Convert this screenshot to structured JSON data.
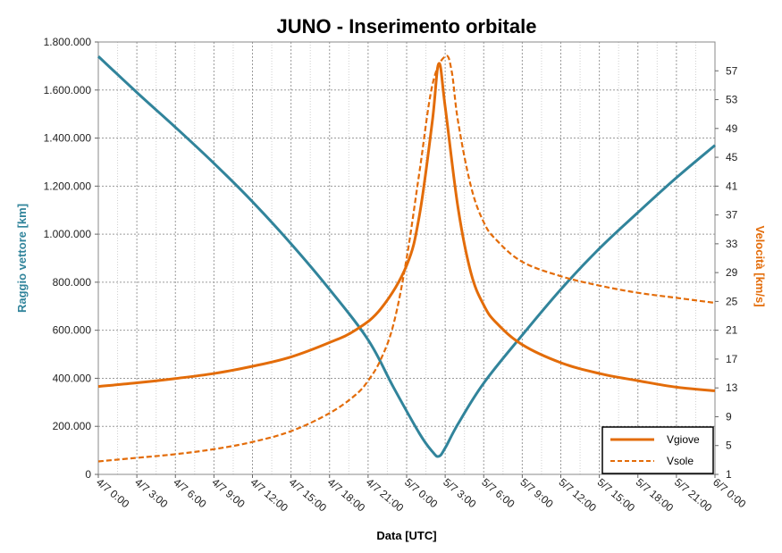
{
  "chart_data": {
    "type": "line",
    "title": "JUNO - Inserimento orbitale",
    "xlabel": "Data [UTC]",
    "ylabel_left": "Raggio vettore [km]",
    "ylabel_right": "Velocità [km/s]",
    "x_ticks": [
      "4/7 0:00",
      "4/7 3:00",
      "4/7 6:00",
      "4/7 9:00",
      "4/7 12:00",
      "4/7 15:00",
      "4/7 18:00",
      "4/7 21:00",
      "5/7 0:00",
      "5/7 3:00",
      "5/7 6:00",
      "5/7 9:00",
      "5/7 12:00",
      "5/7 15:00",
      "5/7 18:00",
      "5/7 21:00",
      "6/7 0:00"
    ],
    "x_range_hours": [
      0,
      48
    ],
    "y_left_ticks": [
      "0",
      "200.000",
      "400.000",
      "600.000",
      "800.000",
      "1.000.000",
      "1.200.000",
      "1.400.000",
      "1.600.000",
      "1.800.000"
    ],
    "y_left_range": [
      0,
      1800000
    ],
    "y_right_ticks": [
      "1",
      "5",
      "9",
      "13",
      "17",
      "21",
      "25",
      "29",
      "33",
      "37",
      "41",
      "45",
      "49",
      "53",
      "57"
    ],
    "y_right_range": [
      1,
      61
    ],
    "grid": true,
    "legend_position": "bottom-right",
    "colors": {
      "radius": "#31849B",
      "speed": "#E36C09"
    },
    "series": [
      {
        "name": "",
        "axis": "left",
        "style": "solid",
        "color": "#31849B",
        "x_hours": [
          0,
          3,
          6,
          9,
          12,
          15,
          18,
          21,
          23,
          25,
          26,
          26.5,
          27,
          28,
          30,
          33,
          36,
          39,
          42,
          45,
          48
        ],
        "values": [
          1740000,
          1590000,
          1445000,
          1295000,
          1135000,
          960000,
          770000,
          560000,
          360000,
          170000,
          95000,
          75000,
          110000,
          210000,
          380000,
          580000,
          770000,
          940000,
          1090000,
          1235000,
          1370000
        ]
      },
      {
        "name": "Vgiove",
        "axis": "right",
        "style": "solid",
        "color": "#E36C09",
        "x_hours": [
          0,
          3,
          6,
          9,
          12,
          15,
          18,
          20,
          22,
          24,
          25,
          26,
          26.5,
          27,
          28,
          29,
          30,
          31,
          33,
          36,
          39,
          42,
          45,
          48
        ],
        "values": [
          13.2,
          13.7,
          14.3,
          15.0,
          16.0,
          17.3,
          19.3,
          21.0,
          24.0,
          30.0,
          37.0,
          50.0,
          58.0,
          52.0,
          38.0,
          29.0,
          24.5,
          22.0,
          19.0,
          16.5,
          15.0,
          14.0,
          13.1,
          12.6
        ]
      },
      {
        "name": "Vsole",
        "axis": "right",
        "style": "dashed",
        "color": "#E36C09",
        "x_hours": [
          0,
          3,
          6,
          9,
          12,
          15,
          18,
          20,
          21,
          22,
          23,
          24,
          25,
          26,
          27,
          27.5,
          28,
          29,
          30,
          31,
          33,
          36,
          39,
          42,
          45,
          48
        ],
        "values": [
          2.8,
          3.3,
          3.8,
          4.5,
          5.5,
          7.0,
          9.5,
          12.0,
          14.0,
          17.0,
          22.0,
          31.0,
          43.0,
          55.0,
          59.0,
          57.0,
          50.0,
          41.0,
          36.0,
          33.5,
          30.5,
          28.5,
          27.2,
          26.2,
          25.5,
          24.8
        ]
      }
    ]
  }
}
